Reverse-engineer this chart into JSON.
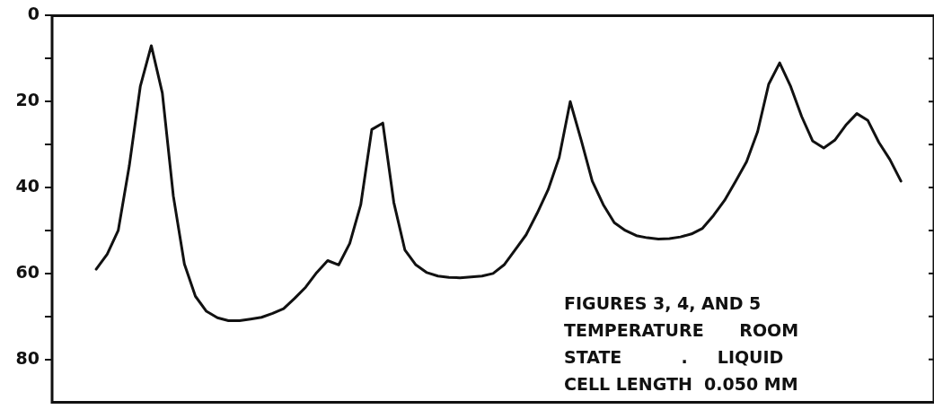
{
  "chart_data": {
    "type": "line",
    "categories": [
      null,
      null,
      null,
      null,
      null,
      null,
      null,
      null,
      null,
      null,
      null,
      null,
      null,
      null,
      null,
      null,
      null,
      null,
      null,
      null,
      null,
      null,
      null,
      null,
      null,
      null,
      null,
      null,
      null,
      null,
      null,
      null,
      null,
      null,
      null,
      null,
      null,
      null,
      null,
      null,
      null,
      null,
      null,
      null,
      null,
      null,
      null,
      null,
      null,
      null,
      null,
      null,
      null,
      null,
      null,
      null,
      null,
      null,
      null,
      null,
      null,
      null,
      null,
      null,
      null,
      null,
      null,
      null,
      null,
      null,
      null,
      null,
      null,
      null,
      null,
      null,
      null,
      null,
      null,
      null,
      null
    ],
    "series": [
      {
        "color": "#111111",
        "values": [
          null,
          null,
          null,
          null,
          59,
          55.5,
          50,
          35,
          16.5,
          7,
          18,
          42,
          57.8,
          65.3,
          68.8,
          70.3,
          71,
          71,
          70.6,
          70.2,
          69.3,
          68.2,
          65.8,
          63.2,
          59.8,
          57,
          58,
          53,
          44,
          26.5,
          25,
          43.5,
          54.5,
          58,
          59.8,
          60.6,
          60.9,
          61,
          60.8,
          60.6,
          60,
          58,
          54.5,
          51,
          46,
          40.5,
          33,
          20,
          29,
          38.5,
          44,
          48.2,
          50,
          51.2,
          51.7,
          52,
          51.9,
          51.5,
          50.8,
          49.5,
          46.5,
          43,
          38.6,
          34,
          27,
          16,
          11,
          16.5,
          23.5,
          29.2,
          30.8,
          29,
          25.5,
          22.8,
          24.4,
          29.5,
          33.5,
          38.5,
          null,
          null,
          null
        ]
      }
    ],
    "ylim": [
      90,
      0
    ],
    "yticks": [
      0,
      {
        "value": 10,
        "label": null
      },
      20,
      {
        "value": 30,
        "label": null
      },
      40,
      {
        "value": 50,
        "label": null
      },
      60,
      {
        "value": 70,
        "label": null
      },
      80
    ],
    "tick_labels": "y",
    "grid": false,
    "legend": false,
    "marker": "none",
    "line_style": "solid",
    "annotations": [
      "FIGURES 3, 4, AND 5",
      "TEMPERATURE      ROOM",
      "STATE          .     LIQUID",
      "CELL LENGTH  0.050 MM"
    ]
  }
}
